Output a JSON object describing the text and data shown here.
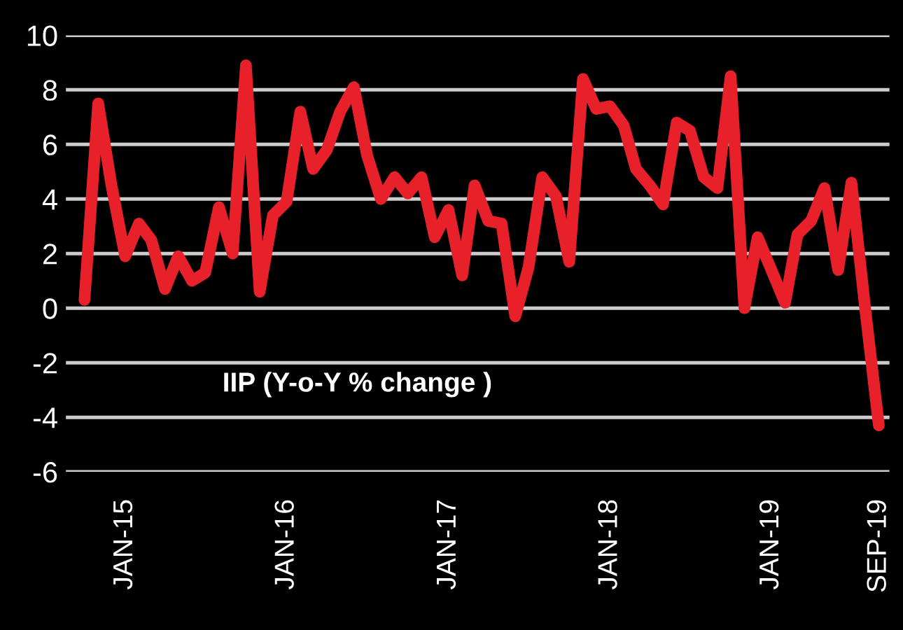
{
  "chart_data": {
    "type": "line",
    "annotations": [
      "IIP (Y-o-Y % change )"
    ],
    "x": [
      "2014-10",
      "2014-11",
      "2014-12",
      "2015-01",
      "2015-02",
      "2015-03",
      "2015-04",
      "2015-05",
      "2015-06",
      "2015-07",
      "2015-08",
      "2015-09",
      "2015-10",
      "2015-11",
      "2015-12",
      "2016-01",
      "2016-02",
      "2016-03",
      "2016-04",
      "2016-05",
      "2016-06",
      "2016-07",
      "2016-08",
      "2016-09",
      "2016-10",
      "2016-11",
      "2016-12",
      "2017-01",
      "2017-02",
      "2017-03",
      "2017-04",
      "2017-05",
      "2017-06",
      "2017-07",
      "2017-08",
      "2017-09",
      "2017-10",
      "2017-11",
      "2017-12",
      "2018-01",
      "2018-02",
      "2018-03",
      "2018-04",
      "2018-05",
      "2018-06",
      "2018-07",
      "2018-08",
      "2018-09",
      "2018-10",
      "2018-11",
      "2018-12",
      "2019-01",
      "2019-02",
      "2019-03",
      "2019-04",
      "2019-05",
      "2019-06",
      "2019-07",
      "2019-08",
      "2019-09"
    ],
    "series": [
      {
        "color": "#e8202a",
        "values": [
          0.3,
          7.5,
          4.5,
          1.9,
          3.1,
          2.5,
          0.7,
          1.9,
          1.0,
          1.3,
          3.7,
          2.0,
          8.9,
          0.6,
          3.4,
          3.9,
          7.2,
          5.1,
          5.8,
          7.2,
          8.1,
          5.6,
          4.0,
          4.8,
          4.2,
          4.8,
          2.6,
          3.6,
          1.2,
          4.5,
          3.2,
          3.1,
          -0.3,
          1.5,
          4.8,
          4.1,
          1.7,
          8.4,
          7.3,
          7.4,
          6.7,
          5.1,
          4.5,
          3.8,
          6.8,
          6.5,
          4.8,
          4.4,
          8.5,
          0.0,
          2.6,
          1.4,
          0.2,
          2.7,
          3.2,
          4.4,
          1.4,
          4.6,
          0.0,
          -4.3
        ]
      }
    ],
    "ylim": [
      -6,
      10
    ],
    "yticks": [
      -6,
      -4,
      -2,
      0,
      2,
      4,
      6,
      8,
      10
    ],
    "xlim": [
      "2014-08-20",
      "2019-09-25"
    ],
    "xticks": [
      {
        "value": "2015-01",
        "label": "JAN-15"
      },
      {
        "value": "2016-01",
        "label": "JAN-16"
      },
      {
        "value": "2017-01",
        "label": "JAN-17"
      },
      {
        "value": "2018-01",
        "label": "JAN-18"
      },
      {
        "value": "2019-01",
        "label": "JAN-19"
      },
      {
        "value": "2019-09",
        "label": "SEP-19"
      }
    ],
    "grid": "y",
    "legend": false,
    "marker": "none",
    "line_style": "solid"
  }
}
